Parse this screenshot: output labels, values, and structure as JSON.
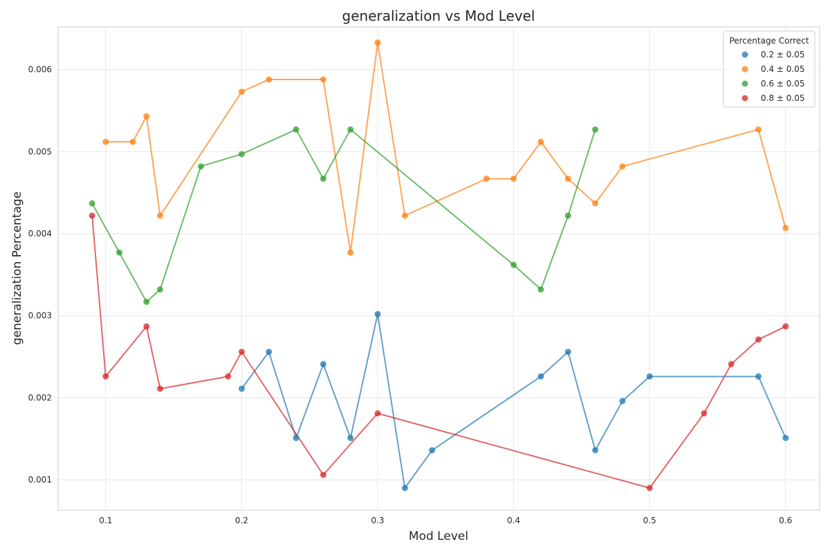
{
  "chart_data": {
    "type": "line",
    "title": "generalization vs Mod Level",
    "xlabel": "Mod Level",
    "ylabel": "generalization Percentage",
    "xlim": [
      0.065,
      0.625
    ],
    "ylim": [
      0.00063,
      0.00652
    ],
    "xticks": [
      0.1,
      0.2,
      0.3,
      0.4,
      0.5,
      0.6
    ],
    "xtick_labels": [
      "0.1",
      "0.2",
      "0.3",
      "0.4",
      "0.5",
      "0.6"
    ],
    "yticks": [
      0.001,
      0.002,
      0.003,
      0.004,
      0.005,
      0.006
    ],
    "ytick_labels": [
      "0.001",
      "0.002",
      "0.003",
      "0.004",
      "0.005",
      "0.006"
    ],
    "grid": true,
    "legend": {
      "title": "Percentage Correct",
      "placement": "top-right"
    },
    "series": [
      {
        "name": "0.2 ± 0.05",
        "color": "#1f77b4",
        "x": [
          0.2,
          0.22,
          0.24,
          0.26,
          0.28,
          0.3,
          0.32,
          0.34,
          0.42,
          0.44,
          0.46,
          0.48,
          0.5,
          0.58,
          0.6
        ],
        "y": [
          0.00211,
          0.00256,
          0.00151,
          0.00241,
          0.00151,
          0.00302,
          0.0009,
          0.00136,
          0.00226,
          0.00256,
          0.00136,
          0.00196,
          0.00226,
          0.00226,
          0.00151
        ]
      },
      {
        "name": "0.4 ± 0.05",
        "color": "#ff7f0e",
        "x": [
          0.1,
          0.12,
          0.13,
          0.14,
          0.2,
          0.22,
          0.26,
          0.28,
          0.3,
          0.32,
          0.38,
          0.4,
          0.42,
          0.44,
          0.46,
          0.48,
          0.58,
          0.6
        ],
        "y": [
          0.00512,
          0.00512,
          0.00543,
          0.00422,
          0.00573,
          0.00588,
          0.00588,
          0.00377,
          0.00633,
          0.00422,
          0.00467,
          0.00467,
          0.00512,
          0.00467,
          0.00437,
          0.00482,
          0.00527,
          0.00407
        ]
      },
      {
        "name": "0.6 ± 0.05",
        "color": "#2ca02c",
        "x": [
          0.09,
          0.11,
          0.13,
          0.14,
          0.17,
          0.2,
          0.24,
          0.26,
          0.28,
          0.4,
          0.42,
          0.44,
          0.46
        ],
        "y": [
          0.00437,
          0.00377,
          0.00317,
          0.00332,
          0.00482,
          0.00497,
          0.00527,
          0.00467,
          0.00527,
          0.00362,
          0.00332,
          0.00422,
          0.00527
        ]
      },
      {
        "name": "0.8 ± 0.05",
        "color": "#d62728",
        "x": [
          0.09,
          0.1,
          0.13,
          0.14,
          0.19,
          0.2,
          0.26,
          0.3,
          0.5,
          0.54,
          0.56,
          0.58,
          0.6
        ],
        "y": [
          0.00422,
          0.00226,
          0.00287,
          0.00211,
          0.00226,
          0.00256,
          0.00106,
          0.00181,
          0.0009,
          0.00181,
          0.00241,
          0.00271,
          0.00287
        ]
      }
    ]
  }
}
